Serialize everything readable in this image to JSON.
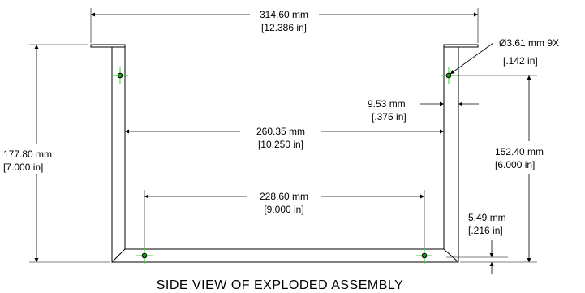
{
  "drawing": {
    "dimensions": {
      "overall_width": {
        "metric": "314.60 mm",
        "imperial": "[12.386 in]"
      },
      "inner_width": {
        "metric": "260.35 mm",
        "imperial": "[10.250 in]"
      },
      "hole_spacing": {
        "metric": "228.60 mm",
        "imperial": "[9.000 in]"
      },
      "overall_height": {
        "metric": "177.80 mm",
        "imperial": "[7.000 in]"
      },
      "hole_height": {
        "metric": "152.40 mm",
        "imperial": "[6.000 in]"
      },
      "wall_thickness": {
        "metric": "9.53 mm",
        "imperial": "[.375 in]"
      },
      "hole_diameter": {
        "metric": "Ø3.61 mm 9X",
        "imperial": "[.142 in]"
      },
      "base_offset": {
        "metric": "5.49 mm",
        "imperial": "[.216 in]"
      }
    },
    "caption": "SIDE VIEW OF EXPLODED ASSEMBLY",
    "colors": {
      "line": "#000000",
      "hole_marker": "#2bd62b",
      "hole_fill": "#1e9a1e"
    }
  }
}
